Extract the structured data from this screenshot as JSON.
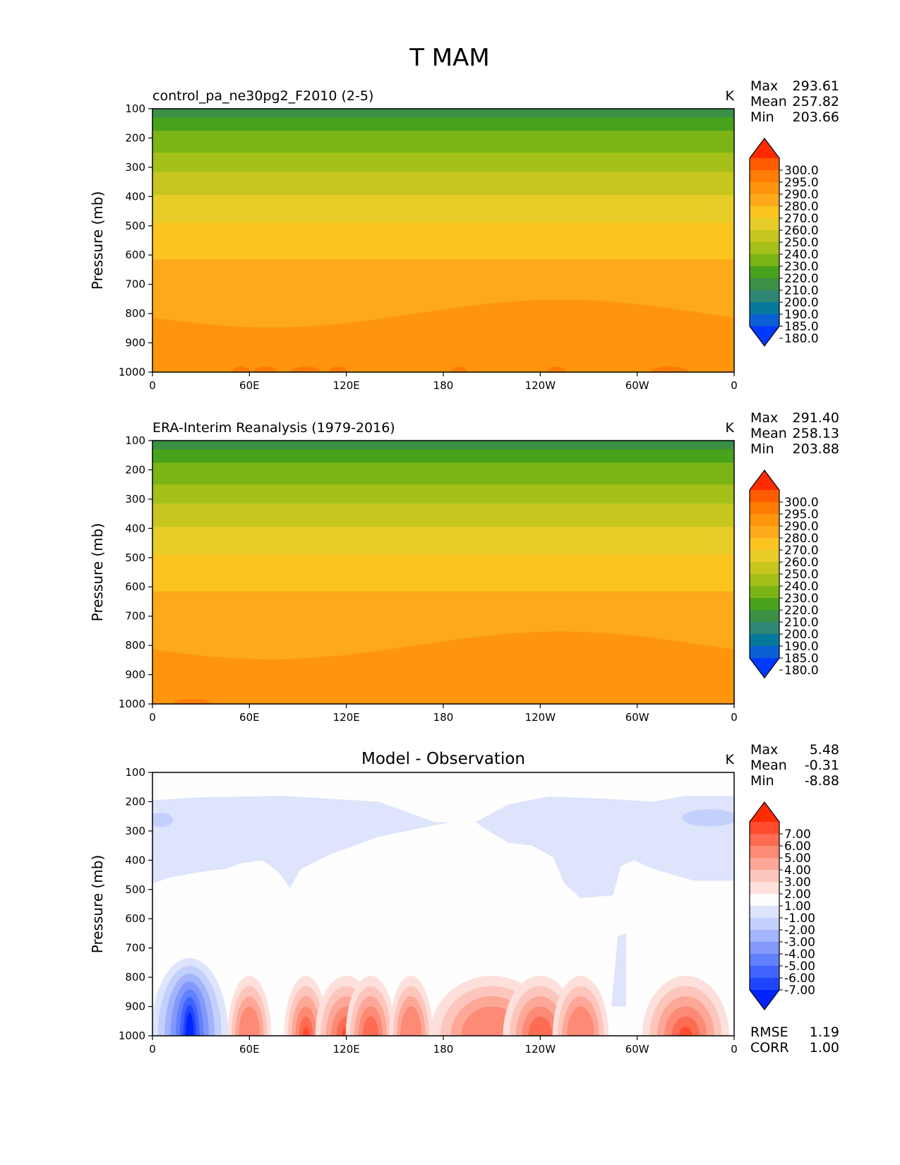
{
  "figure": {
    "title": "T MAM"
  },
  "chart_data": [
    {
      "type": "heatmap",
      "name": "model",
      "title": "control_pa_ne30pg2_F2010 (2-5)",
      "units": "K",
      "ylabel": "Pressure (mb)",
      "xlabel": "",
      "xlim": [
        0,
        360
      ],
      "ylim": [
        1000,
        100
      ],
      "xticks": [
        "0",
        "60E",
        "120E",
        "180",
        "120W",
        "60W",
        "0"
      ],
      "yticks": [
        "100",
        "200",
        "300",
        "400",
        "500",
        "600",
        "700",
        "800",
        "900",
        "1000"
      ],
      "stats": [
        {
          "label": "Max",
          "value": "293.61"
        },
        {
          "label": "Mean",
          "value": "257.82"
        },
        {
          "label": "Min",
          "value": "203.66"
        }
      ],
      "colorbar": {
        "levels": [
          "300.0",
          "295.0",
          "290.0",
          "280.0",
          "270.0",
          "260.0",
          "250.0",
          "240.0",
          "230.0",
          "220.0",
          "210.0",
          "200.0",
          "190.0",
          "185.0",
          "180.0"
        ],
        "colors": [
          "#0039ff",
          "#0a60d2",
          "#05799c",
          "#2f8675",
          "#3b9046",
          "#48a21c",
          "#7ab515",
          "#a4c019",
          "#c6c61f",
          "#e6cd27",
          "#fcc41e",
          "#fda91a",
          "#ff950c",
          "#ff7c05",
          "#ff5b00",
          "#ff2b00"
        ]
      }
    },
    {
      "type": "heatmap",
      "name": "observation",
      "title": "ERA-Interim Reanalysis (1979-2016)",
      "units": "K",
      "ylabel": "Pressure (mb)",
      "xlabel": "",
      "xlim": [
        0,
        360
      ],
      "ylim": [
        1000,
        100
      ],
      "xticks": [
        "0",
        "60E",
        "120E",
        "180",
        "120W",
        "60W",
        "0"
      ],
      "yticks": [
        "100",
        "200",
        "300",
        "400",
        "500",
        "600",
        "700",
        "800",
        "900",
        "1000"
      ],
      "stats": [
        {
          "label": "Max",
          "value": "291.40"
        },
        {
          "label": "Mean",
          "value": "258.13"
        },
        {
          "label": "Min",
          "value": "203.88"
        }
      ],
      "colorbar": {
        "levels": [
          "300.0",
          "295.0",
          "290.0",
          "280.0",
          "270.0",
          "260.0",
          "250.0",
          "240.0",
          "230.0",
          "220.0",
          "210.0",
          "200.0",
          "190.0",
          "185.0",
          "180.0"
        ],
        "colors": [
          "#0039ff",
          "#0a60d2",
          "#05799c",
          "#2f8675",
          "#3b9046",
          "#48a21c",
          "#7ab515",
          "#a4c019",
          "#c6c61f",
          "#e6cd27",
          "#fcc41e",
          "#fda91a",
          "#ff950c",
          "#ff7c05",
          "#ff5b00",
          "#ff2b00"
        ]
      }
    },
    {
      "type": "heatmap",
      "name": "difference",
      "title": "Model - Observation",
      "units": "K",
      "ylabel": "Pressure (mb)",
      "xlabel": "",
      "xlim": [
        0,
        360
      ],
      "ylim": [
        1000,
        100
      ],
      "xticks": [
        "0",
        "60E",
        "120E",
        "180",
        "120W",
        "60W",
        "0"
      ],
      "yticks": [
        "100",
        "200",
        "300",
        "400",
        "500",
        "600",
        "700",
        "800",
        "900",
        "1000"
      ],
      "stats": [
        {
          "label": "Max",
          "value": "5.48"
        },
        {
          "label": "Mean",
          "value": "-0.31"
        },
        {
          "label": "Min",
          "value": "-8.88"
        }
      ],
      "extra_stats": [
        {
          "label": "RMSE",
          "value": "1.19"
        },
        {
          "label": "CORR",
          "value": "1.00"
        }
      ],
      "colorbar": {
        "levels": [
          "7.00",
          "6.00",
          "5.00",
          "4.00",
          "3.00",
          "2.00",
          "1.00",
          "-1.00",
          "-2.00",
          "-3.00",
          "-4.00",
          "-5.00",
          "-6.00",
          "-7.00"
        ],
        "colors": [
          "#0024ff",
          "#1f45ff",
          "#4063ff",
          "#6181ff",
          "#8299fb",
          "#a2b4fb",
          "#c4d0fc",
          "#dde4fc",
          "#fefefe",
          "#fde0dc",
          "#fdc6bd",
          "#fda797",
          "#fc8a74",
          "#fc6b52",
          "#ff4c2e",
          "#ff2b00"
        ]
      }
    }
  ]
}
